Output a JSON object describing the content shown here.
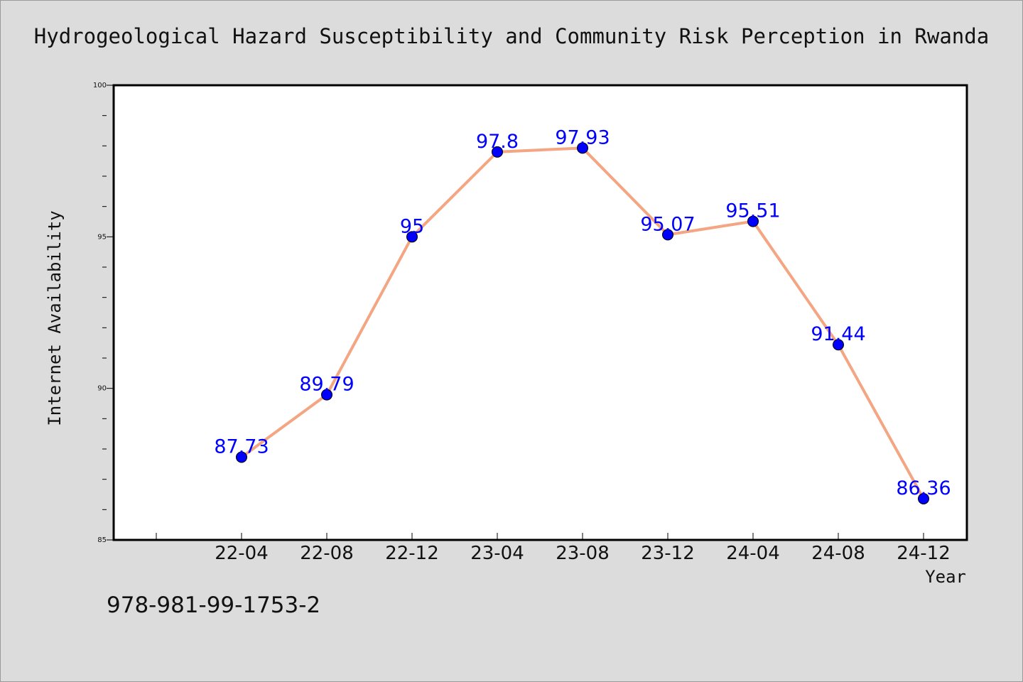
{
  "chart_data": {
    "type": "line",
    "title": "Hydrogeological Hazard Susceptibility and Community Risk Perception in Rwanda",
    "xlabel": "Year",
    "ylabel": "Internet Availability",
    "categories": [
      "22-04",
      "22-08",
      "22-12",
      "23-04",
      "23-08",
      "23-12",
      "24-04",
      "24-08",
      "24-12"
    ],
    "series": [
      {
        "values": [
          87.73,
          89.79,
          95,
          97.8,
          97.93,
          95.07,
          95.51,
          91.44,
          86.36
        ],
        "labels": [
          "87.73",
          "89.79",
          "95",
          "97.8",
          "97.93",
          "95.07",
          "95.51",
          "91.44",
          "86.36"
        ],
        "line_color": "#f4a582",
        "marker_color": "#0000ff"
      }
    ],
    "ylim": [
      85,
      100
    ],
    "yticks": [
      "85",
      "90",
      "95",
      "100"
    ],
    "grid": false,
    "legend": "none"
  },
  "footer": {
    "isbn": "978-981-99-1753-2"
  }
}
